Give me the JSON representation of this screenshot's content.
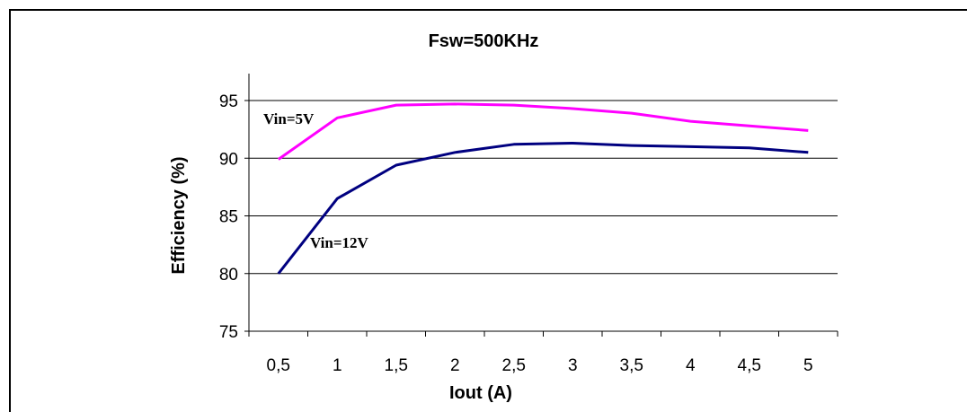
{
  "chart_data": {
    "type": "line",
    "title": "Fsw=500KHz",
    "xlabel": "Iout (A)",
    "ylabel": "Efficiency (%)",
    "categories": [
      "0,5",
      "1",
      "1,5",
      "2",
      "2,5",
      "3",
      "3,5",
      "4",
      "4,5",
      "5"
    ],
    "ylim": [
      75,
      95
    ],
    "yticks": [
      75,
      80,
      85,
      90,
      95
    ],
    "yticks_labels": [
      "75",
      "80",
      "85",
      "90",
      "95"
    ],
    "grid": true,
    "series": [
      {
        "name": "Vin=5V",
        "color": "#ff00ff",
        "values": [
          89.9,
          93.5,
          94.6,
          94.7,
          94.6,
          94.3,
          93.9,
          93.2,
          92.8,
          92.4
        ]
      },
      {
        "name": "Vin=12V",
        "color": "#000080",
        "values": [
          80.0,
          86.5,
          89.4,
          90.5,
          91.2,
          91.3,
          91.1,
          91.0,
          90.9,
          90.5
        ]
      }
    ]
  }
}
